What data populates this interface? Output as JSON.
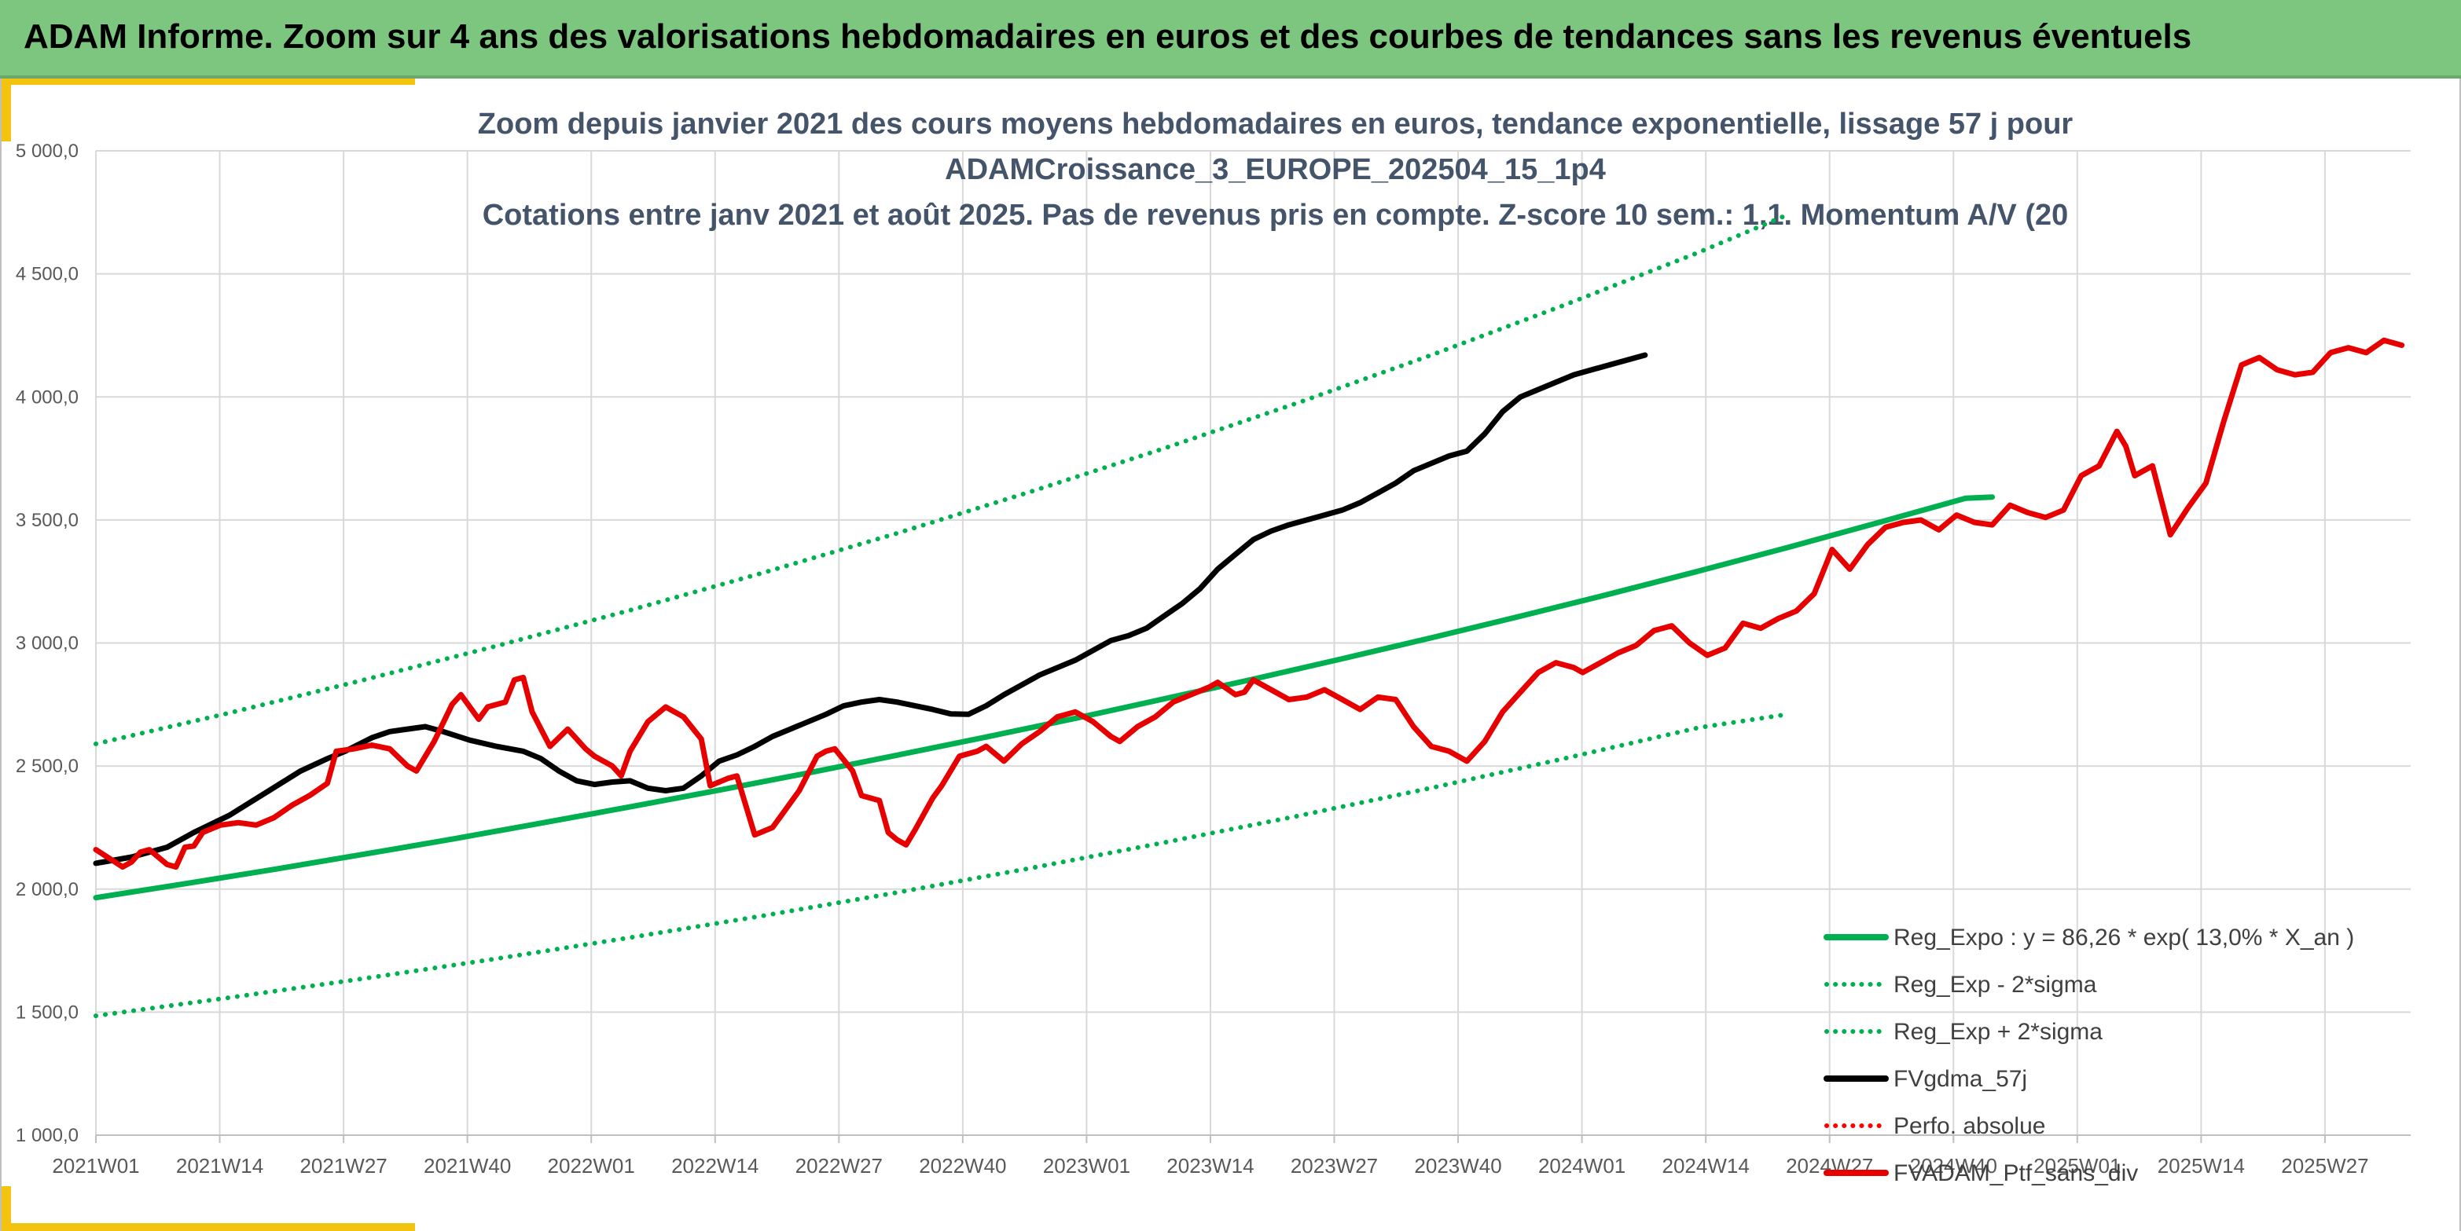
{
  "banner": {
    "title": "ADAM Informe. Zoom sur 4 ans des valorisations hebdomadaires en euros et des courbes de tendances sans les revenus éventuels",
    "background": "#7dc67f",
    "accent": "#f2c40f"
  },
  "chart_data": {
    "type": "line",
    "title_lines": [
      "Zoom depuis janvier 2021 des cours moyens hebdomadaires en euros, tendance exponentielle, lissage 57 j pour",
      "ADAMCroissance_3_EUROPE_202504_15_1p4",
      "Cotations entre janv 2021 et août 2025. Pas de revenus pris en compte. Z-score 10 sem.: 1,1. Momentum A/V (20"
    ],
    "xlabel": "",
    "ylabel": "",
    "ylim": [
      1000,
      5000
    ],
    "yticks": [
      "1 000,0",
      "1 500,0",
      "2 000,0",
      "2 500,0",
      "3 000,0",
      "3 500,0",
      "4 000,0",
      "4 500,0",
      "5 000,0"
    ],
    "xticks": [
      "2021W01",
      "2021W14",
      "2021W27",
      "2021W40",
      "2022W01",
      "2022W14",
      "2022W27",
      "2022W40",
      "2023W01",
      "2023W14",
      "2023W27",
      "2023W40",
      "2024W01",
      "2024W14",
      "2024W27",
      "2024W40",
      "2025W01",
      "2025W14",
      "2025W27"
    ],
    "week_count": 243,
    "grid": true,
    "legend_position": "bottom-right",
    "series": [
      {
        "name": "Reg_Expo : y = 86,26 * exp( 13,0% *  X_an )",
        "color": "#00b050",
        "style": "solid",
        "values": [
          [
            0,
            1965
          ],
          [
            20,
            2022
          ],
          [
            40,
            2080
          ],
          [
            60,
            2141
          ],
          [
            80,
            2203
          ],
          [
            100,
            2268
          ],
          [
            120,
            2334
          ],
          [
            140,
            2402
          ],
          [
            160,
            2472
          ],
          [
            180,
            2544
          ],
          [
            200,
            2618
          ],
          [
            220,
            2694
          ],
          [
            240,
            2773
          ],
          [
            260,
            2853
          ],
          [
            280,
            2936
          ],
          [
            300,
            3021
          ],
          [
            320,
            3109
          ],
          [
            340,
            3199
          ],
          [
            360,
            3292
          ],
          [
            380,
            3388
          ],
          [
            400,
            3487
          ],
          [
            420,
            3588
          ],
          [
            426,
            3593
          ]
        ]
      },
      {
        "name": "Reg_Exp - 2*sigma",
        "color": "#00b050",
        "style": "dotted",
        "values": [
          [
            0,
            1485
          ],
          [
            30,
            1559
          ],
          [
            60,
            1636
          ],
          [
            90,
            1717
          ],
          [
            120,
            1803
          ],
          [
            150,
            1892
          ],
          [
            180,
            1986
          ],
          [
            210,
            2085
          ],
          [
            240,
            2189
          ],
          [
            270,
            2297
          ],
          [
            300,
            2411
          ],
          [
            330,
            2531
          ],
          [
            360,
            2656
          ],
          [
            380,
            2710
          ]
        ]
      },
      {
        "name": "Reg_Exp + 2*sigma",
        "color": "#00b050",
        "style": "dotted",
        "values": [
          [
            0,
            2590
          ],
          [
            30,
            2716
          ],
          [
            60,
            2849
          ],
          [
            90,
            2988
          ],
          [
            120,
            3133
          ],
          [
            150,
            3286
          ],
          [
            180,
            3446
          ],
          [
            210,
            3615
          ],
          [
            240,
            3791
          ],
          [
            270,
            3976
          ],
          [
            300,
            4170
          ],
          [
            330,
            4374
          ],
          [
            360,
            4587
          ],
          [
            380,
            4740
          ]
        ]
      },
      {
        "name": "FVgdma_57j",
        "color": "#000000",
        "style": "solid",
        "values": [
          [
            0,
            2105
          ],
          [
            8,
            2130
          ],
          [
            16,
            2170
          ],
          [
            22,
            2230
          ],
          [
            30,
            2300
          ],
          [
            38,
            2390
          ],
          [
            46,
            2480
          ],
          [
            52,
            2530
          ],
          [
            56,
            2560
          ],
          [
            62,
            2615
          ],
          [
            66,
            2640
          ],
          [
            70,
            2650
          ],
          [
            74,
            2660
          ],
          [
            78,
            2640
          ],
          [
            84,
            2605
          ],
          [
            90,
            2580
          ],
          [
            96,
            2560
          ],
          [
            100,
            2530
          ],
          [
            104,
            2480
          ],
          [
            108,
            2440
          ],
          [
            112,
            2425
          ],
          [
            116,
            2435
          ],
          [
            120,
            2440
          ],
          [
            124,
            2410
          ],
          [
            128,
            2400
          ],
          [
            132,
            2410
          ],
          [
            136,
            2460
          ],
          [
            140,
            2520
          ],
          [
            144,
            2545
          ],
          [
            148,
            2580
          ],
          [
            152,
            2620
          ],
          [
            156,
            2650
          ],
          [
            160,
            2680
          ],
          [
            164,
            2710
          ],
          [
            168,
            2745
          ],
          [
            172,
            2760
          ],
          [
            176,
            2770
          ],
          [
            180,
            2760
          ],
          [
            184,
            2745
          ],
          [
            188,
            2730
          ],
          [
            192,
            2712
          ],
          [
            196,
            2710
          ],
          [
            200,
            2745
          ],
          [
            204,
            2790
          ],
          [
            208,
            2830
          ],
          [
            212,
            2870
          ],
          [
            216,
            2900
          ],
          [
            220,
            2930
          ],
          [
            224,
            2970
          ],
          [
            228,
            3010
          ],
          [
            232,
            3030
          ],
          [
            236,
            3060
          ],
          [
            240,
            3110
          ],
          [
            244,
            3160
          ],
          [
            248,
            3220
          ],
          [
            252,
            3300
          ],
          [
            256,
            3360
          ],
          [
            260,
            3420
          ],
          [
            264,
            3455
          ],
          [
            268,
            3480
          ],
          [
            272,
            3500
          ],
          [
            276,
            3520
          ],
          [
            280,
            3540
          ],
          [
            284,
            3570
          ],
          [
            288,
            3610
          ],
          [
            292,
            3650
          ],
          [
            296,
            3700
          ],
          [
            300,
            3730
          ],
          [
            304,
            3760
          ],
          [
            308,
            3780
          ],
          [
            312,
            3850
          ],
          [
            316,
            3940
          ],
          [
            320,
            4000
          ],
          [
            324,
            4030
          ],
          [
            328,
            4060
          ],
          [
            332,
            4090
          ],
          [
            336,
            4110
          ],
          [
            340,
            4130
          ],
          [
            344,
            4150
          ],
          [
            348,
            4170
          ]
        ]
      },
      {
        "name": "Perfo. absolue",
        "color": "#ff0000",
        "style": "dotted",
        "values": []
      },
      {
        "name": "FVADAM_Ptf_sans_div",
        "color": "#e60000",
        "style": "solid",
        "values": [
          [
            0,
            2160
          ],
          [
            6,
            2090
          ],
          [
            8,
            2110
          ],
          [
            10,
            2150
          ],
          [
            12,
            2160
          ],
          [
            16,
            2100
          ],
          [
            18,
            2090
          ],
          [
            20,
            2170
          ],
          [
            22,
            2175
          ],
          [
            24,
            2230
          ],
          [
            28,
            2260
          ],
          [
            32,
            2270
          ],
          [
            36,
            2260
          ],
          [
            40,
            2290
          ],
          [
            44,
            2340
          ],
          [
            48,
            2380
          ],
          [
            52,
            2430
          ],
          [
            54,
            2560
          ],
          [
            58,
            2570
          ],
          [
            62,
            2585
          ],
          [
            66,
            2570
          ],
          [
            70,
            2500
          ],
          [
            72,
            2480
          ],
          [
            76,
            2600
          ],
          [
            80,
            2750
          ],
          [
            82,
            2790
          ],
          [
            86,
            2690
          ],
          [
            88,
            2740
          ],
          [
            92,
            2760
          ],
          [
            94,
            2850
          ],
          [
            96,
            2860
          ],
          [
            98,
            2720
          ],
          [
            100,
            2650
          ],
          [
            102,
            2580
          ],
          [
            106,
            2650
          ],
          [
            110,
            2570
          ],
          [
            112,
            2540
          ],
          [
            116,
            2500
          ],
          [
            118,
            2460
          ],
          [
            120,
            2560
          ],
          [
            124,
            2680
          ],
          [
            128,
            2740
          ],
          [
            132,
            2700
          ],
          [
            136,
            2610
          ],
          [
            138,
            2420
          ],
          [
            142,
            2450
          ],
          [
            144,
            2460
          ],
          [
            148,
            2220
          ],
          [
            152,
            2250
          ],
          [
            154,
            2300
          ],
          [
            158,
            2400
          ],
          [
            162,
            2540
          ],
          [
            164,
            2560
          ],
          [
            166,
            2570
          ],
          [
            170,
            2480
          ],
          [
            172,
            2380
          ],
          [
            176,
            2360
          ],
          [
            178,
            2230
          ],
          [
            180,
            2200
          ],
          [
            182,
            2180
          ],
          [
            184,
            2240
          ],
          [
            188,
            2370
          ],
          [
            190,
            2420
          ],
          [
            194,
            2540
          ],
          [
            198,
            2560
          ],
          [
            200,
            2580
          ],
          [
            204,
            2520
          ],
          [
            208,
            2590
          ],
          [
            212,
            2640
          ],
          [
            216,
            2700
          ],
          [
            220,
            2720
          ],
          [
            224,
            2680
          ],
          [
            228,
            2620
          ],
          [
            230,
            2600
          ],
          [
            234,
            2660
          ],
          [
            238,
            2700
          ],
          [
            242,
            2760
          ],
          [
            246,
            2790
          ],
          [
            250,
            2820
          ],
          [
            252,
            2840
          ],
          [
            256,
            2790
          ],
          [
            258,
            2800
          ],
          [
            260,
            2850
          ],
          [
            264,
            2810
          ],
          [
            268,
            2770
          ],
          [
            272,
            2780
          ],
          [
            276,
            2810
          ],
          [
            280,
            2770
          ],
          [
            284,
            2730
          ],
          [
            288,
            2780
          ],
          [
            292,
            2770
          ],
          [
            296,
            2660
          ],
          [
            300,
            2580
          ],
          [
            304,
            2560
          ],
          [
            308,
            2520
          ],
          [
            312,
            2600
          ],
          [
            316,
            2720
          ],
          [
            320,
            2800
          ],
          [
            324,
            2880
          ],
          [
            328,
            2920
          ],
          [
            332,
            2900
          ],
          [
            334,
            2880
          ],
          [
            338,
            2920
          ],
          [
            342,
            2960
          ],
          [
            346,
            2990
          ],
          [
            350,
            3050
          ],
          [
            354,
            3070
          ],
          [
            358,
            3000
          ],
          [
            362,
            2950
          ],
          [
            366,
            2980
          ],
          [
            370,
            3080
          ],
          [
            374,
            3060
          ],
          [
            378,
            3100
          ],
          [
            382,
            3130
          ],
          [
            386,
            3200
          ],
          [
            390,
            3380
          ],
          [
            394,
            3300
          ],
          [
            398,
            3400
          ],
          [
            402,
            3470
          ],
          [
            406,
            3490
          ],
          [
            410,
            3500
          ],
          [
            414,
            3460
          ],
          [
            418,
            3520
          ],
          [
            422,
            3490
          ],
          [
            426,
            3480
          ],
          [
            430,
            3560
          ],
          [
            434,
            3530
          ],
          [
            438,
            3510
          ],
          [
            442,
            3540
          ],
          [
            446,
            3680
          ],
          [
            450,
            3720
          ],
          [
            454,
            3860
          ],
          [
            456,
            3800
          ],
          [
            458,
            3680
          ],
          [
            462,
            3720
          ],
          [
            466,
            3440
          ],
          [
            470,
            3550
          ],
          [
            474,
            3650
          ],
          [
            478,
            3900
          ],
          [
            482,
            4130
          ],
          [
            486,
            4160
          ],
          [
            490,
            4110
          ],
          [
            494,
            4090
          ],
          [
            498,
            4100
          ],
          [
            502,
            4180
          ],
          [
            506,
            4200
          ],
          [
            510,
            4180
          ],
          [
            514,
            4230
          ],
          [
            518,
            4210
          ]
        ]
      }
    ]
  }
}
